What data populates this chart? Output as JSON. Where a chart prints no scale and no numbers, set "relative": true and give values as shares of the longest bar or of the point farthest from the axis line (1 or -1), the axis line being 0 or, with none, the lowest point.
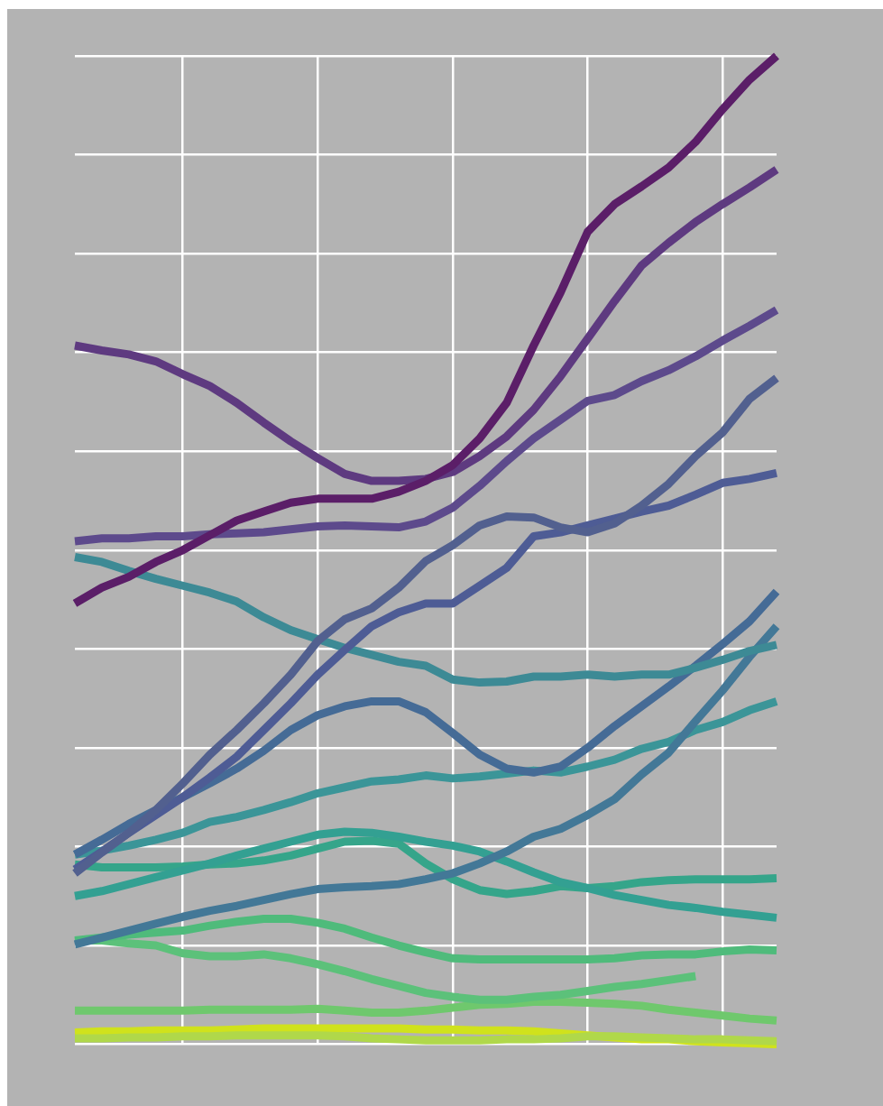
{
  "chart_data": {
    "type": "line",
    "relative": true,
    "grid": true,
    "legend": false,
    "marker": "none",
    "line_style": "solid",
    "categories": [
      null,
      null,
      null,
      null,
      null,
      null,
      null,
      null,
      null,
      null,
      null,
      null,
      null,
      null,
      null,
      null,
      null,
      null,
      null,
      null,
      null,
      null,
      null,
      null,
      null,
      null,
      null
    ],
    "series": [
      {
        "color": "#5b1e68",
        "values": [
          0.446,
          0.462,
          0.473,
          0.488,
          0.5,
          0.515,
          0.53,
          0.539,
          0.548,
          0.552,
          0.552,
          0.552,
          0.559,
          0.57,
          0.586,
          0.613,
          0.649,
          0.707,
          0.761,
          0.822,
          0.85,
          0.868,
          0.887,
          0.913,
          0.946,
          0.976,
          1
        ]
      },
      {
        "color": "#5e3a80",
        "values": [
          0.707,
          0.702,
          0.698,
          0.691,
          0.678,
          0.666,
          0.649,
          0.629,
          0.61,
          0.593,
          0.577,
          0.57,
          0.57,
          0.572,
          0.579,
          0.595,
          0.615,
          0.642,
          0.676,
          0.714,
          0.752,
          0.788,
          0.811,
          0.832,
          0.85,
          0.867,
          0.885
        ]
      },
      {
        "color": "#5d4a8c",
        "values": [
          0.509,
          0.512,
          0.512,
          0.514,
          0.514,
          0.516,
          0.517,
          0.518,
          0.521,
          0.524,
          0.525,
          0.524,
          0.523,
          0.529,
          0.543,
          0.565,
          0.59,
          0.613,
          0.632,
          0.651,
          0.657,
          0.671,
          0.682,
          0.696,
          0.712,
          0.727,
          0.743
        ]
      },
      {
        "color": "#52608f",
        "values": [
          0.173,
          0.194,
          0.214,
          0.237,
          0.264,
          0.293,
          0.318,
          0.345,
          0.374,
          0.408,
          0.43,
          0.441,
          0.462,
          0.489,
          0.505,
          0.525,
          0.534,
          0.533,
          0.523,
          0.518,
          0.527,
          0.545,
          0.567,
          0.595,
          0.619,
          0.653,
          0.674
        ]
      },
      {
        "color": "#4e5c95",
        "values": [
          0.177,
          0.195,
          0.214,
          0.232,
          0.25,
          0.27,
          0.291,
          0.318,
          0.345,
          0.374,
          0.399,
          0.423,
          0.437,
          0.446,
          0.446,
          0.464,
          0.482,
          0.514,
          0.518,
          0.525,
          0.532,
          0.539,
          0.545,
          0.556,
          0.568,
          0.572,
          0.578
        ]
      },
      {
        "color": "#3d8a95",
        "values": [
          0.493,
          0.488,
          0.479,
          0.471,
          0.464,
          0.457,
          0.448,
          0.432,
          0.419,
          0.41,
          0.401,
          0.394,
          0.387,
          0.383,
          0.369,
          0.366,
          0.367,
          0.372,
          0.372,
          0.374,
          0.372,
          0.374,
          0.374,
          0.381,
          0.389,
          0.398,
          0.404
        ]
      },
      {
        "color": "#456b96",
        "values": [
          0.192,
          0.207,
          0.223,
          0.237,
          0.25,
          0.264,
          0.279,
          0.297,
          0.318,
          0.333,
          0.342,
          0.347,
          0.347,
          0.336,
          0.315,
          0.293,
          0.279,
          0.275,
          0.281,
          0.3,
          0.322,
          0.342,
          0.362,
          0.383,
          0.405,
          0.428,
          0.458
        ]
      },
      {
        "color": "#437897",
        "values": [
          0.101,
          0.108,
          0.115,
          0.122,
          0.129,
          0.135,
          0.14,
          0.146,
          0.152,
          0.157,
          0.159,
          0.16,
          0.162,
          0.167,
          0.173,
          0.183,
          0.195,
          0.21,
          0.218,
          0.232,
          0.248,
          0.273,
          0.295,
          0.327,
          0.358,
          0.392,
          0.423
        ]
      },
      {
        "color": "#3b9598",
        "values": [
          0.192,
          0.196,
          0.201,
          0.207,
          0.214,
          0.225,
          0.23,
          0.237,
          0.245,
          0.254,
          0.26,
          0.266,
          0.268,
          0.272,
          0.269,
          0.271,
          0.274,
          0.277,
          0.275,
          0.281,
          0.288,
          0.299,
          0.306,
          0.318,
          0.326,
          0.338,
          0.347
        ]
      },
      {
        "color": "#33a092",
        "values": [
          0.15,
          0.155,
          0.162,
          0.169,
          0.176,
          0.183,
          0.191,
          0.198,
          0.205,
          0.212,
          0.215,
          0.214,
          0.21,
          0.205,
          0.201,
          0.195,
          0.185,
          0.174,
          0.164,
          0.158,
          0.151,
          0.146,
          0.141,
          0.138,
          0.134,
          0.131,
          0.128
        ]
      },
      {
        "color": "#35a58a",
        "values": [
          0.182,
          0.179,
          0.179,
          0.179,
          0.18,
          0.182,
          0.183,
          0.186,
          0.191,
          0.198,
          0.205,
          0.206,
          0.203,
          0.183,
          0.167,
          0.156,
          0.152,
          0.155,
          0.16,
          0.158,
          0.16,
          0.164,
          0.166,
          0.167,
          0.167,
          0.167,
          0.168
        ]
      },
      {
        "color": "#4fbb7b",
        "values": [
          0.105,
          0.108,
          0.111,
          0.113,
          0.115,
          0.12,
          0.124,
          0.127,
          0.127,
          0.123,
          0.117,
          0.108,
          0.1,
          0.093,
          0.087,
          0.086,
          0.086,
          0.086,
          0.086,
          0.086,
          0.087,
          0.09,
          0.091,
          0.091,
          0.094,
          0.096,
          0.095
        ]
      },
      {
        "color": "#5cc17a",
        "values": [
          0.105,
          0.105,
          0.102,
          0.1,
          0.092,
          0.089,
          0.089,
          0.091,
          0.087,
          0.081,
          0.074,
          0.066,
          0.059,
          0.052,
          0.048,
          0.045,
          0.045,
          0.048,
          0.05,
          0.054,
          0.058,
          0.061,
          0.065,
          0.069,
          null,
          null,
          null
        ]
      },
      {
        "color": "#6fc86d",
        "values": [
          0.034,
          0.034,
          0.034,
          0.034,
          0.034,
          0.035,
          0.035,
          0.035,
          0.035,
          0.036,
          0.034,
          0.032,
          0.032,
          0.034,
          0.037,
          0.04,
          0.041,
          0.043,
          0.043,
          0.042,
          0.041,
          0.039,
          0.035,
          0.032,
          0.029,
          0.026,
          0.024
        ]
      },
      {
        "color": "#b0d84a",
        "values": [
          0.006,
          0.006,
          0.007,
          0.007,
          0.008,
          0.008,
          0.009,
          0.009,
          0.009,
          0.009,
          0.008,
          0.006,
          0.005,
          0.004,
          0.004,
          0.004,
          0.005,
          0.005,
          0.006,
          0.008,
          0.008,
          0.007,
          0.006,
          0.005,
          0.005,
          0.004,
          0.003
        ]
      },
      {
        "color": "#d0e21c",
        "values": [
          0.012,
          0.013,
          0.013,
          0.014,
          0.014,
          0.014,
          0.015,
          0.016,
          0.016,
          0.016,
          0.016,
          0.016,
          0.016,
          0.015,
          0.015,
          0.014,
          0.014,
          0.013,
          0.011,
          0.009,
          0.007,
          0.005,
          0.005,
          0.003,
          0.002,
          0.001,
          0
        ]
      }
    ]
  }
}
